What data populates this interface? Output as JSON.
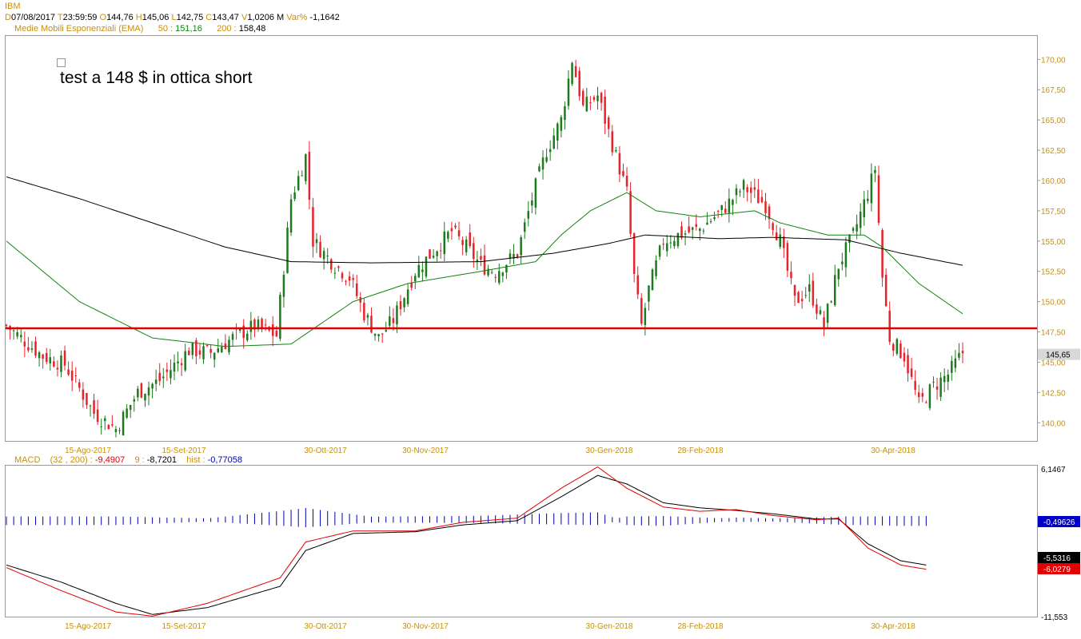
{
  "header": {
    "symbol": "IBM",
    "quote": [
      {
        "k": "D",
        "v": "07/08/2017"
      },
      {
        "k": "T",
        "v": "23:59:59"
      },
      {
        "k": "O",
        "v": "144,76"
      },
      {
        "k": "H",
        "v": "145,06"
      },
      {
        "k": "L",
        "v": "142,75"
      },
      {
        "k": "C",
        "v": "143,47"
      },
      {
        "k": "V",
        "v": "1,0206 M"
      },
      {
        "k": "Var%",
        "v": "-1,1642"
      }
    ],
    "ema": {
      "label": "Medie Mobili Esponenziali (EMA)",
      "p1": "50",
      "v1": "151,16",
      "p2": "200",
      "v2": "158,48"
    }
  },
  "annotation": "test a 148 $ in ottica short",
  "macd_header": {
    "label": "MACD",
    "params": "(32 , 200)",
    "v1": "-9,4907",
    "p2": "9",
    "v2": "-8,7201",
    "hist_label": "hist",
    "hist_v": "-0,77058"
  },
  "colors": {
    "up": "#1f7a1f",
    "down": "#e8232b",
    "ema50": "#128212",
    "ema200": "#000000",
    "support": "#e00000",
    "axis_text": "#c8900a",
    "hist": "#0000b4"
  },
  "chart_data": [
    {
      "type": "candlestick",
      "x_axis": [
        "15-Ago-2017",
        "15-Set-2017",
        "30-Ott-2017",
        "30-Nov-2017",
        "30-Gen-2018",
        "28-Feb-2018",
        "30-Apr-2018"
      ],
      "ylim": [
        138.5,
        172
      ],
      "y_ticks": [
        "170,00",
        "167,50",
        "165,00",
        "162,50",
        "160,00",
        "157,50",
        "155,00",
        "152,50",
        "150,00",
        "147,50",
        "145,00",
        "142,50",
        "140,00"
      ],
      "last_price_label": "145,65",
      "horizontal_line": 147.8,
      "close_path": [
        [
          0,
          148.0
        ],
        [
          10,
          145.5
        ],
        [
          16,
          144.8
        ],
        [
          24,
          140.8
        ],
        [
          30,
          139.5
        ],
        [
          36,
          142.5
        ],
        [
          42,
          143.5
        ],
        [
          50,
          146.0
        ],
        [
          56,
          145.8
        ],
        [
          62,
          147.0
        ],
        [
          68,
          148.0
        ],
        [
          74,
          147.2
        ],
        [
          78,
          158.5
        ],
        [
          82,
          162.0
        ],
        [
          84,
          155.0
        ],
        [
          90,
          153.0
        ],
        [
          94,
          152.0
        ],
        [
          98,
          149.0
        ],
        [
          102,
          147.0
        ],
        [
          106,
          148.5
        ],
        [
          112,
          152.5
        ],
        [
          118,
          154.5
        ],
        [
          122,
          155.8
        ],
        [
          126,
          154.5
        ],
        [
          130,
          153.0
        ],
        [
          134,
          152.5
        ],
        [
          140,
          154.0
        ],
        [
          144,
          158.5
        ],
        [
          148,
          162.5
        ],
        [
          152,
          165.0
        ],
        [
          155,
          170.0
        ],
        [
          158,
          166.0
        ],
        [
          162,
          167.0
        ],
        [
          166,
          163.0
        ],
        [
          170,
          159.0
        ],
        [
          172,
          152.0
        ],
        [
          174,
          148.0
        ],
        [
          176,
          151.0
        ],
        [
          180,
          155.0
        ],
        [
          184,
          155.5
        ],
        [
          190,
          156.0
        ],
        [
          196,
          157.5
        ],
        [
          202,
          159.5
        ],
        [
          208,
          158.0
        ],
        [
          212,
          155.0
        ],
        [
          216,
          150.0
        ],
        [
          220,
          151.0
        ],
        [
          224,
          148.0
        ],
        [
          228,
          153.0
        ],
        [
          232,
          155.5
        ],
        [
          236,
          159.0
        ],
        [
          238,
          161.0
        ],
        [
          240,
          152.0
        ],
        [
          242,
          147.0
        ],
        [
          246,
          145.5
        ],
        [
          250,
          141.5
        ],
        [
          254,
          143.0
        ],
        [
          258,
          144.0
        ],
        [
          262,
          145.8
        ]
      ],
      "ema50_path": [
        [
          0,
          155.0
        ],
        [
          20,
          150.0
        ],
        [
          40,
          147.0
        ],
        [
          60,
          146.3
        ],
        [
          78,
          146.5
        ],
        [
          95,
          150.0
        ],
        [
          110,
          151.5
        ],
        [
          130,
          152.5
        ],
        [
          145,
          153.3
        ],
        [
          152,
          155.5
        ],
        [
          160,
          157.5
        ],
        [
          170,
          159.0
        ],
        [
          178,
          157.5
        ],
        [
          190,
          157.0
        ],
        [
          205,
          157.5
        ],
        [
          212,
          156.5
        ],
        [
          225,
          155.5
        ],
        [
          235,
          155.5
        ],
        [
          240,
          154.5
        ],
        [
          250,
          151.5
        ],
        [
          262,
          149.0
        ]
      ],
      "ema200_path": [
        [
          0,
          160.3
        ],
        [
          20,
          158.5
        ],
        [
          40,
          156.5
        ],
        [
          60,
          154.5
        ],
        [
          78,
          153.3
        ],
        [
          100,
          153.2
        ],
        [
          130,
          153.3
        ],
        [
          150,
          154.0
        ],
        [
          165,
          154.8
        ],
        [
          175,
          155.5
        ],
        [
          195,
          155.2
        ],
        [
          210,
          155.3
        ],
        [
          230,
          155.1
        ],
        [
          245,
          154.0
        ],
        [
          262,
          153.0
        ]
      ]
    },
    {
      "type": "line",
      "name": "MACD",
      "ylim": [
        -11.553,
        6.1467
      ],
      "y_ticks": [
        "6,1467",
        "-11,553"
      ],
      "x_axis": [
        "15-Ago-2017",
        "15-Set-2017",
        "30-Ott-2017",
        "30-Nov-2017",
        "30-Gen-2018",
        "28-Feb-2018",
        "30-Apr-2018"
      ],
      "value_labels": {
        "hist": "-0,49626",
        "signal": "-5,5316",
        "macd": "-6,0279"
      },
      "macd_path": [
        [
          0,
          -5.8
        ],
        [
          15,
          -8.5
        ],
        [
          30,
          -11.0
        ],
        [
          40,
          -11.5
        ],
        [
          55,
          -10.0
        ],
        [
          75,
          -7.0
        ],
        [
          82,
          -2.8
        ],
        [
          95,
          -1.5
        ],
        [
          112,
          -1.5
        ],
        [
          125,
          -0.5
        ],
        [
          140,
          0.0
        ],
        [
          152,
          3.5
        ],
        [
          162,
          6.0
        ],
        [
          170,
          3.5
        ],
        [
          180,
          1.3
        ],
        [
          190,
          0.8
        ],
        [
          200,
          1.0
        ],
        [
          210,
          0.3
        ],
        [
          222,
          -0.2
        ],
        [
          228,
          0.0
        ],
        [
          236,
          -3.5
        ],
        [
          245,
          -5.5
        ],
        [
          252,
          -6.0
        ]
      ],
      "signal_path": [
        [
          0,
          -5.5
        ],
        [
          15,
          -7.5
        ],
        [
          30,
          -10.0
        ],
        [
          40,
          -11.3
        ],
        [
          55,
          -10.5
        ],
        [
          75,
          -8.0
        ],
        [
          82,
          -3.8
        ],
        [
          95,
          -1.8
        ],
        [
          112,
          -1.6
        ],
        [
          125,
          -0.8
        ],
        [
          140,
          -0.3
        ],
        [
          152,
          2.5
        ],
        [
          162,
          5.0
        ],
        [
          170,
          4.0
        ],
        [
          180,
          1.8
        ],
        [
          190,
          1.2
        ],
        [
          200,
          0.9
        ],
        [
          210,
          0.5
        ],
        [
          222,
          -0.1
        ],
        [
          228,
          -0.1
        ],
        [
          236,
          -3.0
        ],
        [
          245,
          -5.0
        ],
        [
          252,
          -5.5
        ]
      ],
      "hist_path": [
        [
          0,
          -0.4
        ],
        [
          30,
          -0.4
        ],
        [
          55,
          0.0
        ],
        [
          76,
          0.9
        ],
        [
          82,
          1.2
        ],
        [
          100,
          0.2
        ],
        [
          130,
          0.3
        ],
        [
          150,
          0.6
        ],
        [
          162,
          0.7
        ],
        [
          170,
          -0.4
        ],
        [
          180,
          -0.5
        ],
        [
          200,
          0.1
        ],
        [
          210,
          0.0
        ],
        [
          230,
          -0.4
        ],
        [
          236,
          -0.4
        ],
        [
          244,
          -0.5
        ],
        [
          252,
          -0.5
        ]
      ]
    }
  ]
}
